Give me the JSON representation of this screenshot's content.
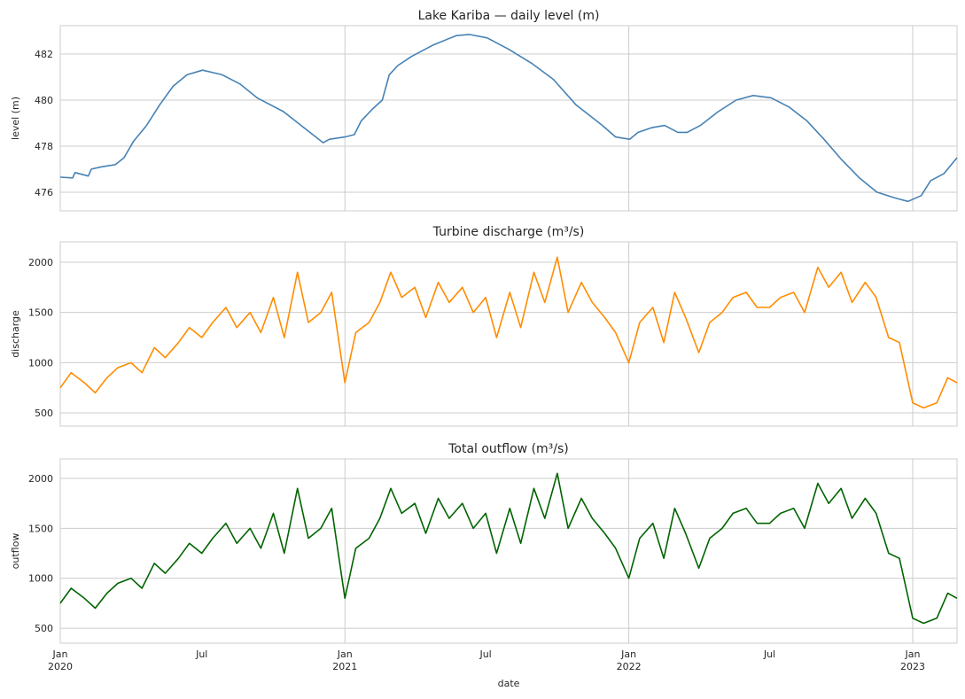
{
  "chart_data": [
    {
      "type": "line",
      "title": "Lake Kariba — daily level (m)",
      "xlabel": "",
      "ylabel": "level (m)",
      "ylim": [
        475.19,
        483.23
      ],
      "yticks": [
        476,
        478,
        480,
        482
      ],
      "xlim": [
        "2020-01-01",
        "2023-02-27"
      ],
      "grid": true,
      "color": "#4682b4",
      "x": [
        "2020-01-01",
        "2020-01-17",
        "2020-01-20",
        "2020-02-06",
        "2020-02-10",
        "2020-02-23",
        "2020-03-12",
        "2020-03-23",
        "2020-04-04",
        "2020-04-21",
        "2020-05-08",
        "2020-05-25",
        "2020-06-12",
        "2020-07-02",
        "2020-07-27",
        "2020-08-19",
        "2020-09-10",
        "2020-10-14",
        "2020-11-17",
        "2020-12-04",
        "2020-12-12",
        "2021-01-01",
        "2021-01-13",
        "2021-01-22",
        "2021-02-05",
        "2021-02-18",
        "2021-02-27",
        "2021-03-10",
        "2021-03-28",
        "2021-04-25",
        "2021-05-24",
        "2021-06-10",
        "2021-07-03",
        "2021-07-31",
        "2021-08-29",
        "2021-09-26",
        "2021-10-25",
        "2021-11-28",
        "2021-12-15",
        "2022-01-02",
        "2022-01-13",
        "2022-01-30",
        "2022-02-16",
        "2022-03-05",
        "2022-03-17",
        "2022-04-03",
        "2022-04-26",
        "2022-05-19",
        "2022-06-10",
        "2022-07-03",
        "2022-07-26",
        "2022-08-18",
        "2022-09-09",
        "2022-10-02",
        "2022-10-25",
        "2022-11-16",
        "2022-12-09",
        "2022-12-26",
        "2023-01-12",
        "2023-01-24",
        "2023-02-10",
        "2023-02-27"
      ],
      "values": [
        476.65,
        476.62,
        476.85,
        476.7,
        477.0,
        477.1,
        477.2,
        477.5,
        478.2,
        478.9,
        479.8,
        480.6,
        481.1,
        481.3,
        481.1,
        480.7,
        480.1,
        479.5,
        478.6,
        478.15,
        478.3,
        478.4,
        478.5,
        479.1,
        479.6,
        480.0,
        481.1,
        481.5,
        481.9,
        482.4,
        482.8,
        482.85,
        482.7,
        482.2,
        481.6,
        480.9,
        479.8,
        478.9,
        478.4,
        478.3,
        478.6,
        478.8,
        478.9,
        478.6,
        478.6,
        478.9,
        479.5,
        480.0,
        480.2,
        480.1,
        479.7,
        479.1,
        478.3,
        477.4,
        476.6,
        476.0,
        475.75,
        475.6,
        475.85,
        476.5,
        476.8,
        477.5
      ]
    },
    {
      "type": "line",
      "title": "Turbine discharge (m³/s)",
      "xlabel": "",
      "ylabel": "discharge",
      "ylim": [
        368,
        2203
      ],
      "yticks": [
        500,
        1000,
        1500,
        2000
      ],
      "xlim": [
        "2020-01-01",
        "2023-02-27"
      ],
      "grid": true,
      "color": "#ff8c00",
      "x": [
        "2020-01-01",
        "2020-01-15",
        "2020-02-01",
        "2020-02-15",
        "2020-03-01",
        "2020-03-15",
        "2020-04-01",
        "2020-04-15",
        "2020-05-01",
        "2020-05-15",
        "2020-06-01",
        "2020-06-15",
        "2020-07-01",
        "2020-07-15",
        "2020-08-01",
        "2020-08-15",
        "2020-09-01",
        "2020-09-15",
        "2020-10-01",
        "2020-10-15",
        "2020-11-01",
        "2020-11-15",
        "2020-12-01",
        "2020-12-15",
        "2021-01-01",
        "2021-01-15",
        "2021-02-01",
        "2021-02-15",
        "2021-03-01",
        "2021-03-15",
        "2021-04-01",
        "2021-04-15",
        "2021-05-01",
        "2021-05-15",
        "2021-06-01",
        "2021-06-15",
        "2021-07-01",
        "2021-07-15",
        "2021-08-01",
        "2021-08-15",
        "2021-09-01",
        "2021-09-15",
        "2021-10-01",
        "2021-10-15",
        "2021-11-01",
        "2021-11-15",
        "2021-12-01",
        "2021-12-15",
        "2022-01-01",
        "2022-01-15",
        "2022-02-01",
        "2022-02-15",
        "2022-03-01",
        "2022-03-15",
        "2022-04-01",
        "2022-04-15",
        "2022-05-01",
        "2022-05-15",
        "2022-06-01",
        "2022-06-15",
        "2022-07-01",
        "2022-07-15",
        "2022-08-01",
        "2022-08-15",
        "2022-09-01",
        "2022-09-15",
        "2022-10-01",
        "2022-10-15",
        "2022-11-01",
        "2022-11-15",
        "2022-12-01",
        "2022-12-15",
        "2023-01-01",
        "2023-01-15",
        "2023-02-01",
        "2023-02-15",
        "2023-02-27"
      ],
      "values": [
        750,
        900,
        800,
        700,
        850,
        950,
        1000,
        900,
        1150,
        1050,
        1200,
        1350,
        1250,
        1400,
        1550,
        1350,
        1500,
        1300,
        1650,
        1250,
        1900,
        1400,
        1500,
        1700,
        800,
        1300,
        1400,
        1600,
        1900,
        1650,
        1750,
        1450,
        1800,
        1600,
        1750,
        1500,
        1650,
        1250,
        1700,
        1350,
        1900,
        1600,
        2050,
        1500,
        1800,
        1600,
        1450,
        1300,
        1000,
        1400,
        1550,
        1200,
        1700,
        1450,
        1100,
        1400,
        1500,
        1650,
        1700,
        1550,
        1550,
        1650,
        1700,
        1500,
        1950,
        1750,
        1900,
        1600,
        1800,
        1650,
        1250,
        1200,
        600,
        550,
        600,
        850,
        800
      ]
    },
    {
      "type": "line",
      "title": "Total outflow (m³/s)",
      "xlabel": "date",
      "ylabel": "outflow",
      "ylim": [
        350,
        2195
      ],
      "yticks": [
        500,
        1000,
        1500,
        2000
      ],
      "xlim": [
        "2020-01-01",
        "2023-02-27"
      ],
      "xticks": [
        {
          "date": "2020-01-01",
          "label": "Jan",
          "year": "2020"
        },
        {
          "date": "2020-07-01",
          "label": "Jul",
          "year": ""
        },
        {
          "date": "2021-01-01",
          "label": "Jan",
          "year": "2021"
        },
        {
          "date": "2021-07-01",
          "label": "Jul",
          "year": ""
        },
        {
          "date": "2022-01-01",
          "label": "Jan",
          "year": "2022"
        },
        {
          "date": "2022-07-01",
          "label": "Jul",
          "year": ""
        },
        {
          "date": "2023-01-01",
          "label": "Jan",
          "year": "2023"
        }
      ],
      "grid": true,
      "color": "#006400",
      "x": [
        "2020-01-01",
        "2020-01-15",
        "2020-02-01",
        "2020-02-15",
        "2020-03-01",
        "2020-03-15",
        "2020-04-01",
        "2020-04-15",
        "2020-05-01",
        "2020-05-15",
        "2020-06-01",
        "2020-06-15",
        "2020-07-01",
        "2020-07-15",
        "2020-08-01",
        "2020-08-15",
        "2020-09-01",
        "2020-09-15",
        "2020-10-01",
        "2020-10-15",
        "2020-11-01",
        "2020-11-15",
        "2020-12-01",
        "2020-12-15",
        "2021-01-01",
        "2021-01-15",
        "2021-02-01",
        "2021-02-15",
        "2021-03-01",
        "2021-03-15",
        "2021-04-01",
        "2021-04-15",
        "2021-05-01",
        "2021-05-15",
        "2021-06-01",
        "2021-06-15",
        "2021-07-01",
        "2021-07-15",
        "2021-08-01",
        "2021-08-15",
        "2021-09-01",
        "2021-09-15",
        "2021-10-01",
        "2021-10-15",
        "2021-11-01",
        "2021-11-15",
        "2021-12-01",
        "2021-12-15",
        "2022-01-01",
        "2022-01-15",
        "2022-02-01",
        "2022-02-15",
        "2022-03-01",
        "2022-03-15",
        "2022-04-01",
        "2022-04-15",
        "2022-05-01",
        "2022-05-15",
        "2022-06-01",
        "2022-06-15",
        "2022-07-01",
        "2022-07-15",
        "2022-08-01",
        "2022-08-15",
        "2022-09-01",
        "2022-09-15",
        "2022-10-01",
        "2022-10-15",
        "2022-11-01",
        "2022-11-15",
        "2022-12-01",
        "2022-12-15",
        "2023-01-01",
        "2023-01-15",
        "2023-02-01",
        "2023-02-15",
        "2023-02-27"
      ],
      "values": [
        750,
        900,
        800,
        700,
        850,
        950,
        1000,
        900,
        1150,
        1050,
        1200,
        1350,
        1250,
        1400,
        1550,
        1350,
        1500,
        1300,
        1650,
        1250,
        1900,
        1400,
        1500,
        1700,
        800,
        1300,
        1400,
        1600,
        1900,
        1650,
        1750,
        1450,
        1800,
        1600,
        1750,
        1500,
        1650,
        1250,
        1700,
        1350,
        1900,
        1600,
        2050,
        1500,
        1800,
        1600,
        1450,
        1300,
        1000,
        1400,
        1550,
        1200,
        1700,
        1450,
        1100,
        1400,
        1500,
        1650,
        1700,
        1550,
        1550,
        1650,
        1700,
        1500,
        1950,
        1750,
        1900,
        1600,
        1800,
        1650,
        1250,
        1200,
        600,
        550,
        600,
        850,
        800
      ]
    }
  ]
}
